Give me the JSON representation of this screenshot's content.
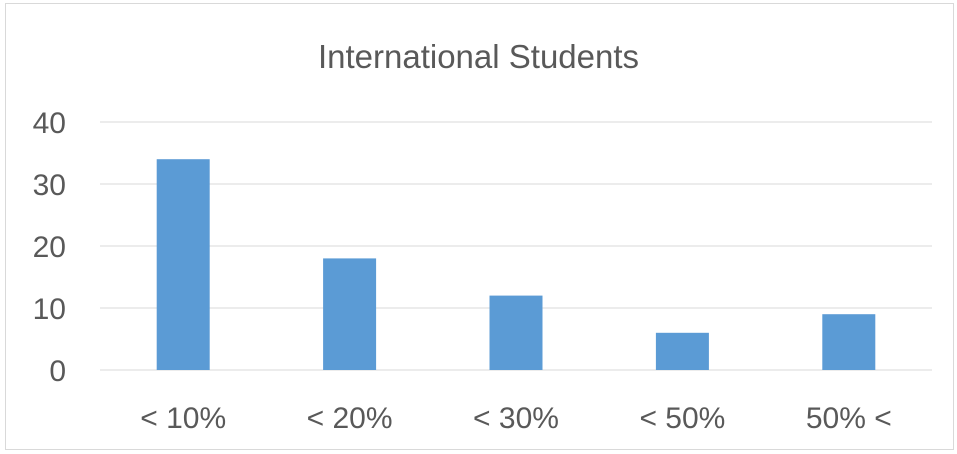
{
  "chart_data": {
    "type": "bar",
    "title": "International Students",
    "xlabel": "",
    "ylabel": "",
    "categories": [
      "< 10%",
      "< 20%",
      "< 30%",
      "< 50%",
      "50% <"
    ],
    "values": [
      34,
      18,
      12,
      6,
      9
    ],
    "ylim": [
      0,
      40
    ],
    "yticks": [
      0,
      10,
      20,
      30,
      40
    ],
    "grid": true,
    "legend": "none",
    "colors": {
      "bar": "#5b9bd5",
      "grid": "#d9d9d9",
      "text": "#595959"
    }
  }
}
